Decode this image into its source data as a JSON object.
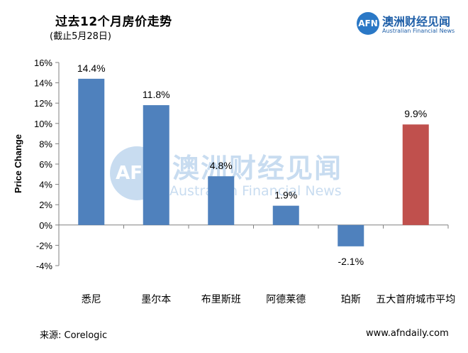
{
  "header": {
    "title": "过去12个月房价走势",
    "subtitle": "(截止5月28日)"
  },
  "logo": {
    "mark": "AFN",
    "name_cn": "澳洲财经见闻",
    "name_en": "Australian Financial News"
  },
  "watermark": {
    "mark": "AFN",
    "name_cn": "澳洲财经见闻",
    "name_en": "Australian Financial News"
  },
  "footer": {
    "source": "来源:   Corelogic",
    "site": "www.afndaily.com"
  },
  "colors": {
    "bar_blue": "#4f81bd",
    "bar_red": "#c0504d",
    "brand": "#2a78c6"
  },
  "chart_data": {
    "type": "bar",
    "categories": [
      "悉尼",
      "墨尔本",
      "布里斯班",
      "阿德莱德",
      "珀斯",
      "五大首府城市平均"
    ],
    "values": [
      14.4,
      11.8,
      4.8,
      1.9,
      -2.1,
      9.9
    ],
    "value_labels": [
      "14.4%",
      "11.8%",
      "4.8%",
      "1.9%",
      "-2.1%",
      "9.9%"
    ],
    "bar_colors": [
      "#4f81bd",
      "#4f81bd",
      "#4f81bd",
      "#4f81bd",
      "#4f81bd",
      "#c0504d"
    ],
    "ylabel": "Price Change",
    "ylim": [
      -4,
      16
    ],
    "yticks": [
      16,
      14,
      12,
      10,
      8,
      6,
      4,
      2,
      0,
      -2,
      -4
    ],
    "ytick_labels": [
      "16%",
      "14%",
      "12%",
      "10%",
      "8%",
      "6%",
      "4%",
      "2%",
      "0%",
      "-2%",
      "-4%"
    ],
    "grid": false,
    "legend": "none"
  }
}
